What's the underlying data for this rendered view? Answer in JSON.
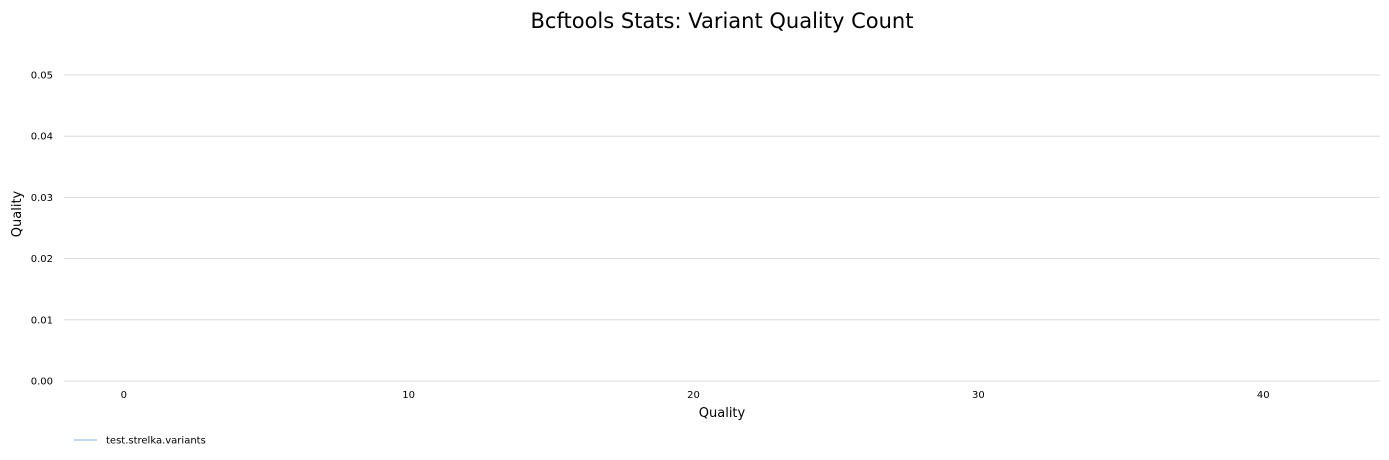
{
  "chart_data": {
    "type": "line",
    "title": "Bcftools Stats: Variant Quality Count",
    "xlabel": "Quality",
    "ylabel": "Quality",
    "xlim": [
      -2.1,
      44.1
    ],
    "ylim": [
      0,
      0.05
    ],
    "x_ticks": [
      0,
      10,
      20,
      30,
      40
    ],
    "y_ticks": [
      0,
      0.01,
      0.02,
      0.03,
      0.04,
      0.05
    ],
    "y_tick_labels": [
      "0.00",
      "0.01",
      "0.02",
      "0.03",
      "0.04",
      "0.05"
    ],
    "grid": true,
    "legend_position": "bottom-left",
    "series": [
      {
        "name": "test.strelka.variants",
        "color": "#7cb5ec",
        "x": [],
        "y": []
      }
    ]
  }
}
